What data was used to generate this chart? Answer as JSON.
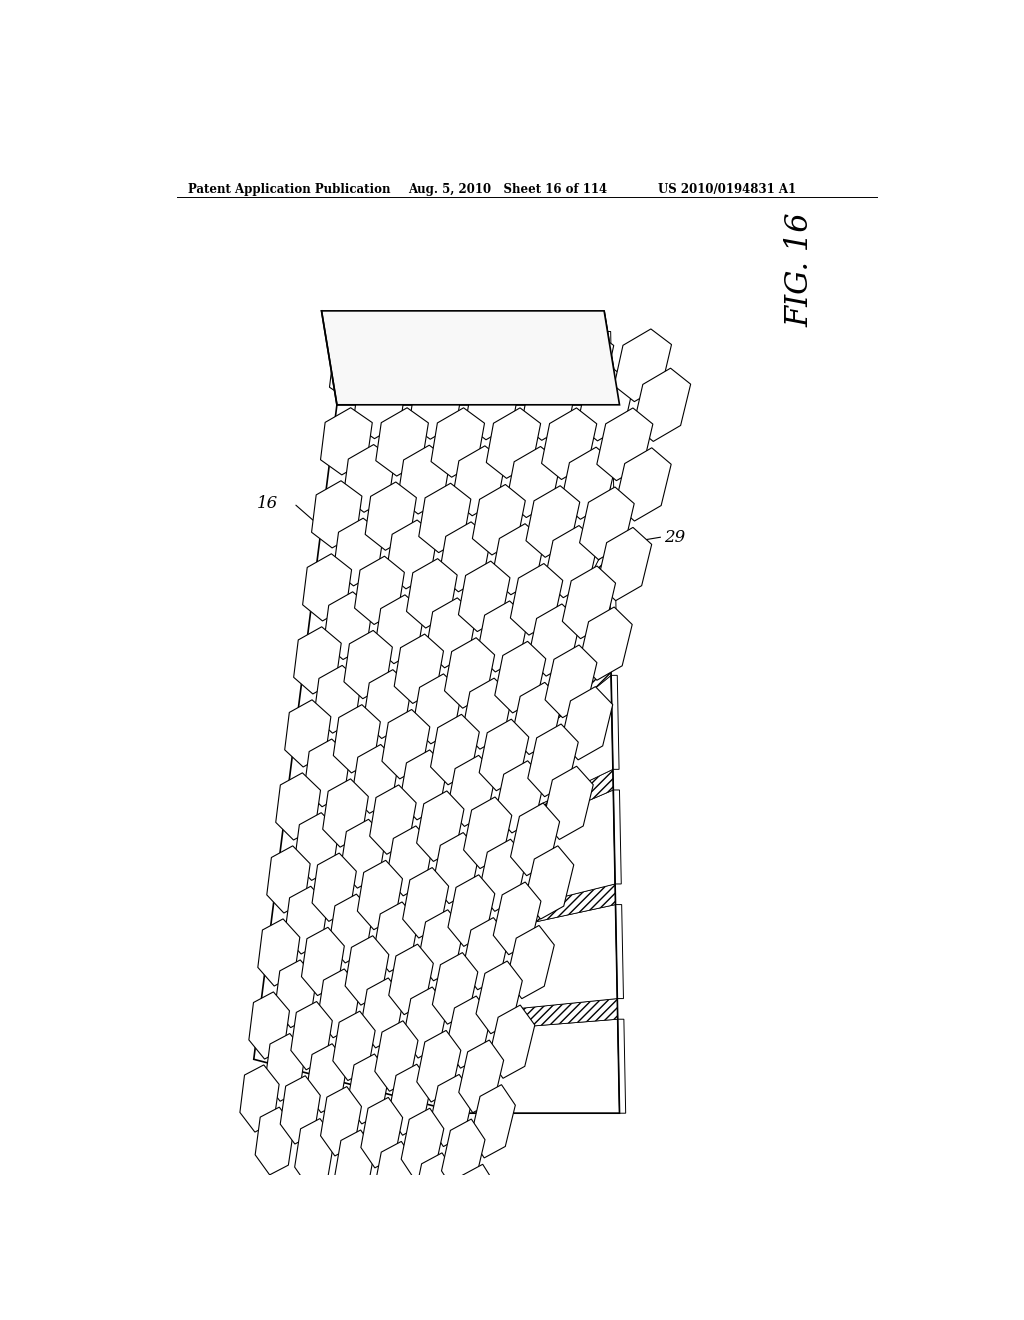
{
  "header_left": "Patent Application Publication",
  "header_mid": "Aug. 5, 2010   Sheet 16 of 114",
  "header_right": "US 2010/0194831 A1",
  "fig_label": "FIG. 16",
  "label_16": "16",
  "label_29": "29",
  "bg_color": "#ffffff",
  "line_color": "#000000",
  "n_cols": 5,
  "n_rows": 9,
  "n_layers": 7
}
